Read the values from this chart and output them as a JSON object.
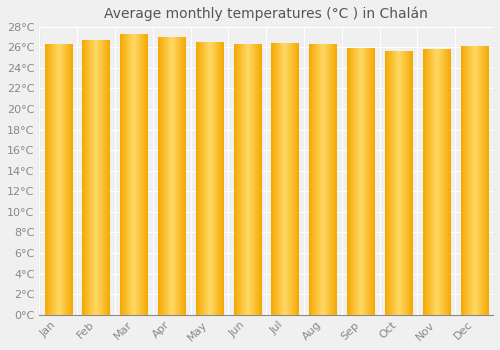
{
  "months": [
    "Jan",
    "Feb",
    "Mar",
    "Apr",
    "May",
    "Jun",
    "Jul",
    "Aug",
    "Sep",
    "Oct",
    "Nov",
    "Dec"
  ],
  "temperatures": [
    26.3,
    26.7,
    27.3,
    27.0,
    26.5,
    26.3,
    26.4,
    26.3,
    25.9,
    25.6,
    25.8,
    26.1
  ],
  "title": "Average monthly temperatures (°C ) in Chalán",
  "bar_color_center": "#FFD966",
  "bar_color_edge": "#F5A800",
  "ylim_min": 0,
  "ylim_max": 28,
  "ytick_step": 2,
  "background_color": "#f0f0f0",
  "grid_color": "#ffffff",
  "title_fontsize": 10,
  "tick_fontsize": 8,
  "title_color": "#555555",
  "tick_color": "#888888"
}
